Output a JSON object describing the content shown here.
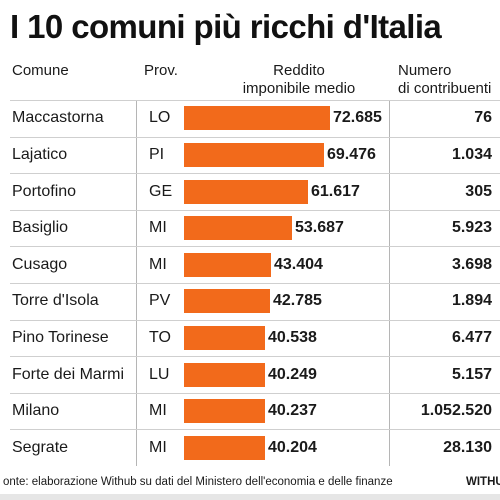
{
  "title": "I 10 comuni più ricchi d'Italia",
  "headers": {
    "comune": "Comune",
    "prov": "Prov.",
    "reddito": "Reddito imponibile medio",
    "contribuenti": "Numero di contribuenti"
  },
  "chart_data": {
    "type": "bar",
    "orientation": "horizontal",
    "title": "I 10 comuni più ricchi d'Italia",
    "categories": [
      "Maccastorna",
      "Lajatico",
      "Portofino",
      "Basiglio",
      "Cusago",
      "Torre d'Isola",
      "Pino Torinese",
      "Forte dei Marmi",
      "Milano",
      "Segrate"
    ],
    "provinces": [
      "LO",
      "PI",
      "GE",
      "MI",
      "MI",
      "PV",
      "TO",
      "LU",
      "MI",
      "MI"
    ],
    "values": [
      72685,
      69476,
      61617,
      53687,
      43404,
      42785,
      40538,
      40249,
      40237,
      40204
    ],
    "value_labels": [
      "72.685",
      "69.476",
      "61.617",
      "53.687",
      "43.404",
      "42.785",
      "40.538",
      "40.249",
      "40.237",
      "40.204"
    ],
    "contribuenti": [
      "76",
      "1.034",
      "305",
      "5.923",
      "3.698",
      "1.894",
      "6.477",
      "5.157",
      "1.052.520",
      "28.130"
    ],
    "bar_color": "#f26a1b"
  },
  "footer": {
    "source": "onte: elaborazione Withub su dati del Ministero dell'economia e delle finanze",
    "brand": "WITHUB"
  }
}
